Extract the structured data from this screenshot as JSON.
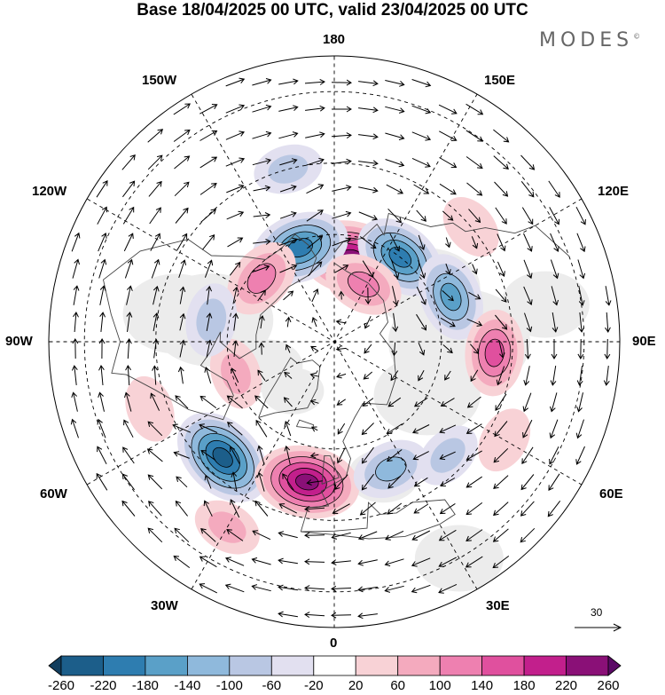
{
  "title": "Base 18/04/2025 00 UTC, valid 23/04/2025 00 UTC",
  "brand": "MODES",
  "brand_mark": "©",
  "longitude_labels": {
    "top": "180",
    "top_left": "150W",
    "top_right": "150E",
    "upper_left": "120W",
    "upper_right": "120E",
    "left": "90W",
    "right": "90E",
    "lower_left": "60W",
    "lower_right": "60E",
    "bottom_left": "30W",
    "bottom_right": "30E",
    "bottom": "0"
  },
  "wind_scale": {
    "value": "30"
  },
  "colorbar": {
    "labels": [
      "-260",
      "-220",
      "-180",
      "-140",
      "-100",
      "-60",
      "-20",
      "20",
      "60",
      "100",
      "140",
      "180",
      "220",
      "260"
    ],
    "colors": [
      "#123e5e",
      "#1c5e8a",
      "#2e7db0",
      "#5aa0c8",
      "#8fb9dc",
      "#b9c7e3",
      "#e2e0f0",
      "#ffffff",
      "#f8d2d6",
      "#f4aabe",
      "#ee80b0",
      "#e0509e",
      "#c21f8c",
      "#8a1077",
      "#5b0a66"
    ]
  },
  "anomalies": [
    {
      "lon": 168,
      "lat": 66,
      "v": 240
    },
    {
      "lon": -160,
      "lat": 62,
      "v": -200
    },
    {
      "lon": 142,
      "lat": 60,
      "v": -180
    },
    {
      "lon": -131,
      "lat": 63,
      "v": 120
    },
    {
      "lon": 111,
      "lat": 55,
      "v": -150
    },
    {
      "lon": 153,
      "lat": 72,
      "v": 110
    },
    {
      "lon": 86,
      "lat": 45,
      "v": 140
    },
    {
      "lon": -44,
      "lat": 45,
      "v": -230
    },
    {
      "lon": -11,
      "lat": 50,
      "v": 230
    },
    {
      "lon": 24,
      "lat": 51,
      "v": -100
    },
    {
      "lon": -72,
      "lat": 61,
      "v": 70
    },
    {
      "lon": -100,
      "lat": 55,
      "v": -80
    },
    {
      "lon": -165,
      "lat": 40,
      "v": -60
    },
    {
      "lon": -70,
      "lat": 35,
      "v": 50
    },
    {
      "lon": 45,
      "lat": 45,
      "v": -60
    },
    {
      "lon": 130,
      "lat": 40,
      "v": 50
    },
    {
      "lon": -30,
      "lat": 30,
      "v": 60
    },
    {
      "lon": 60,
      "lat": 35,
      "v": 50
    }
  ]
}
